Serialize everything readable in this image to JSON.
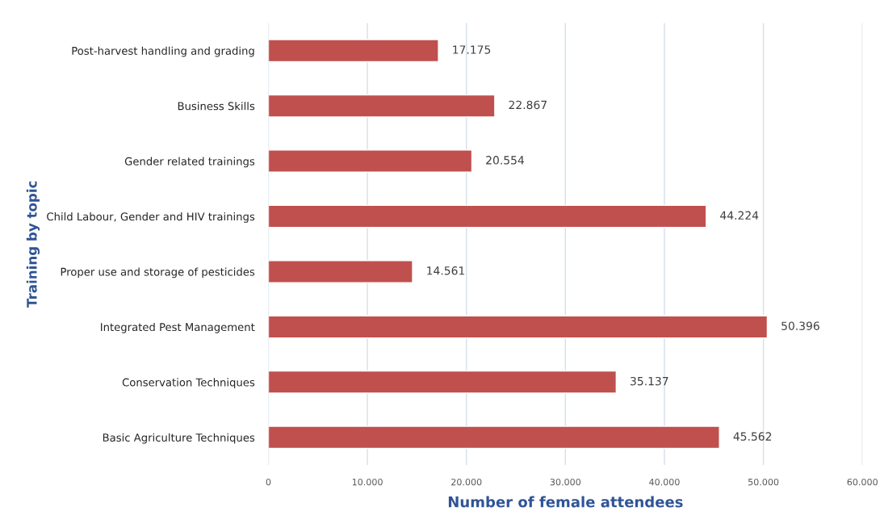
{
  "chart_data": {
    "type": "bar",
    "orientation": "horizontal",
    "xlabel": "Number of female attendees",
    "ylabel": "Training by topic",
    "categories": [
      "Post-harvest handling and grading",
      "Business Skills",
      "Gender related trainings",
      "Child Labour, Gender and HIV trainings",
      "Proper use and storage of pesticides",
      "Integrated Pest Management",
      "Conservation Techniques",
      "Basic Agriculture Techniques"
    ],
    "values": [
      17175,
      22867,
      20554,
      44224,
      14561,
      50396,
      35137,
      45562
    ],
    "value_labels": [
      "17.175",
      "22.867",
      "20.554",
      "44.224",
      "14.561",
      "50.396",
      "35.137",
      "45.562"
    ],
    "color": "#c0504d",
    "xlim": [
      0,
      60000
    ],
    "xticks": [
      {
        "value": 0,
        "label": "0"
      },
      {
        "value": 10000,
        "label": "10.000"
      },
      {
        "value": 20000,
        "label": "20.000"
      },
      {
        "value": 30000,
        "label": "30.000"
      },
      {
        "value": 40000,
        "label": "40.000"
      },
      {
        "value": 50000,
        "label": "50.000"
      },
      {
        "value": 60000,
        "label": "60.000"
      }
    ],
    "grid": "x"
  }
}
